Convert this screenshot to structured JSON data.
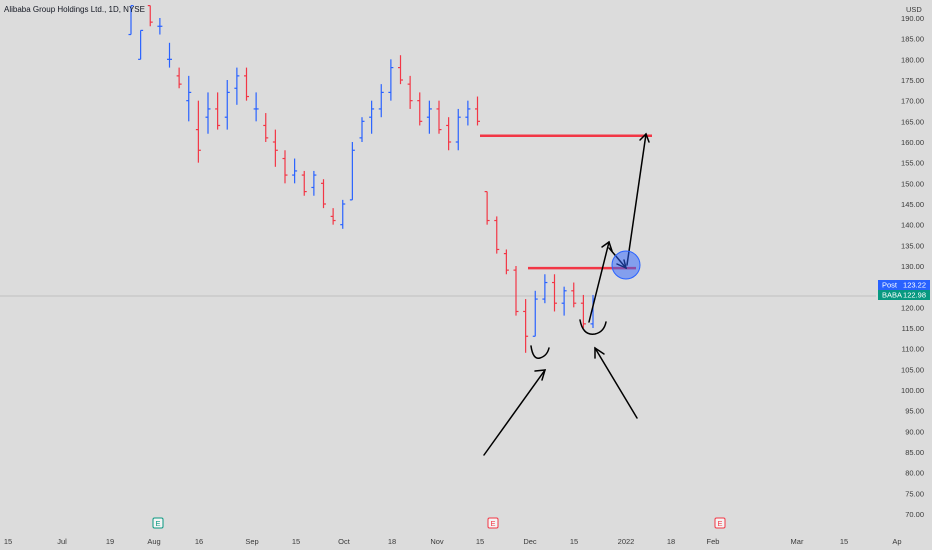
{
  "chart_data": {
    "type": "ohlc",
    "title": "Alibaba Group Holdings Ltd., 1D, NYSE",
    "currency": "USD",
    "ylim": [
      67,
      193
    ],
    "y_ticks": [
      190,
      185,
      180,
      175,
      170,
      165,
      160,
      155,
      150,
      145,
      140,
      135,
      130,
      125,
      120,
      115,
      110,
      105,
      100,
      95,
      90,
      85,
      80,
      75,
      70
    ],
    "x_ticks": [
      "15",
      "Jul",
      "19",
      "Aug",
      "16",
      "Sep",
      "15",
      "Oct",
      "18",
      "Nov",
      "15",
      "Dec",
      "15",
      "2022",
      "18",
      "Feb",
      "Mar",
      "15",
      "Ap"
    ],
    "colors": {
      "up": "#2962ff",
      "down": "#f23645",
      "annotation_line": "#f23645",
      "drawing": "#000000",
      "marker": "#2962ff",
      "post_badge": "#2962ff",
      "ticker_badge": "#089981"
    },
    "price_badges": [
      {
        "label": "Post",
        "value": "123.22"
      },
      {
        "label": "BABA",
        "value": "122.98"
      }
    ],
    "event_markers": [
      {
        "label": "E",
        "color": "#089981"
      },
      {
        "label": "E",
        "color": "#f23645"
      },
      {
        "label": "E",
        "color": "#f23645"
      }
    ],
    "horizontal_levels": [
      161.5,
      129.5
    ],
    "current_price": 122.98,
    "series": [
      {
        "values": [
          [
            186,
            193,
            186,
            193
          ],
          [
            180,
            187,
            180,
            187
          ],
          [
            193,
            193,
            188,
            189
          ],
          [
            188,
            190,
            186,
            188
          ],
          [
            180,
            184,
            178,
            180
          ],
          [
            176,
            178,
            173,
            174
          ],
          [
            170,
            176,
            165,
            172
          ],
          [
            163,
            170,
            155,
            158
          ],
          [
            166,
            172,
            162,
            168
          ],
          [
            168,
            172,
            163,
            164
          ],
          [
            166,
            175,
            163,
            172
          ],
          [
            173,
            178,
            169,
            176
          ],
          [
            176,
            178,
            170,
            171
          ],
          [
            168,
            172,
            165,
            168
          ],
          [
            164,
            167,
            160,
            161
          ],
          [
            160,
            163,
            154,
            158
          ],
          [
            156,
            158,
            150,
            152
          ],
          [
            152,
            156,
            150,
            153
          ],
          [
            152,
            153,
            147,
            148
          ],
          [
            149,
            153,
            147,
            152
          ],
          [
            150,
            151,
            144,
            145
          ],
          [
            142,
            144,
            140,
            141
          ],
          [
            140,
            146,
            139,
            145
          ],
          [
            146,
            160,
            146,
            158
          ],
          [
            161,
            166,
            160,
            165
          ],
          [
            166,
            170,
            162,
            168
          ],
          [
            168,
            174,
            166,
            172
          ],
          [
            172,
            180,
            170,
            178
          ],
          [
            178,
            181,
            174,
            175
          ],
          [
            174,
            176,
            168,
            170
          ],
          [
            170,
            172,
            164,
            165
          ],
          [
            166,
            170,
            162,
            168
          ],
          [
            168,
            170,
            162,
            163
          ],
          [
            164,
            166,
            158,
            160
          ],
          [
            160,
            168,
            158,
            166
          ],
          [
            166,
            170,
            164,
            168
          ],
          [
            168,
            171,
            164,
            165
          ],
          [
            148,
            148,
            140,
            141
          ],
          [
            141,
            142,
            133,
            134
          ],
          [
            133,
            134,
            128,
            129
          ],
          [
            129,
            130,
            118,
            119
          ],
          [
            119,
            122,
            109,
            113
          ],
          [
            113,
            124,
            113,
            122
          ],
          [
            122,
            128,
            121,
            126
          ],
          [
            126,
            128,
            119,
            121
          ],
          [
            121,
            125,
            118,
            124
          ],
          [
            124,
            126,
            120,
            121
          ],
          [
            121,
            123,
            115,
            116
          ],
          [
            116,
            123,
            115,
            122
          ]
        ]
      }
    ]
  }
}
